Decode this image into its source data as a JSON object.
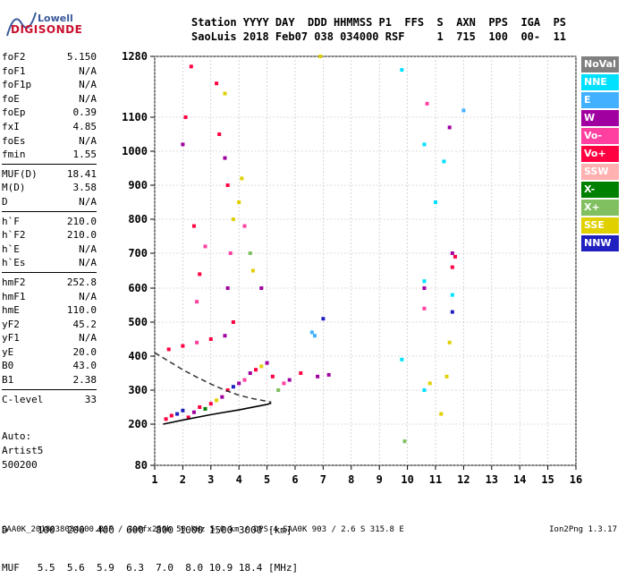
{
  "logo": {
    "line1": "Lowell",
    "line2": "DIGISONDE"
  },
  "header": {
    "line1": "Station YYYY DAY  DDD HHMMSS P1  FFS  S  AXN  PPS  IGA  PS",
    "line2": "SaoLuis 2018 Feb07 038 034000 RSF     1  715  100  00-  11"
  },
  "params": [
    {
      "name": "foF2",
      "value": "5.150"
    },
    {
      "name": "foF1",
      "value": "N/A"
    },
    {
      "name": "foF1p",
      "value": "N/A"
    },
    {
      "name": "foE",
      "value": "N/A"
    },
    {
      "name": "foEp",
      "value": "0.39"
    },
    {
      "name": "fxI",
      "value": "4.85"
    },
    {
      "name": "foEs",
      "value": "N/A"
    },
    {
      "name": "fmin",
      "value": "1.55"
    },
    {
      "sep": true
    },
    {
      "name": "MUF(D)",
      "value": "18.41"
    },
    {
      "name": "M(D)",
      "value": "3.58"
    },
    {
      "name": "D",
      "value": "N/A"
    },
    {
      "sep": true
    },
    {
      "name": "h`F",
      "value": "210.0"
    },
    {
      "name": "h`F2",
      "value": "210.0"
    },
    {
      "name": "h`E",
      "value": "N/A"
    },
    {
      "name": "h`Es",
      "value": "N/A"
    },
    {
      "sep": true
    },
    {
      "name": "hmF2",
      "value": "252.8"
    },
    {
      "name": "hmF1",
      "value": "N/A"
    },
    {
      "name": "hmE",
      "value": "110.0"
    },
    {
      "name": "yF2",
      "value": "45.2"
    },
    {
      "name": "yF1",
      "value": "N/A"
    },
    {
      "name": "yE",
      "value": "20.0"
    },
    {
      "name": "B0",
      "value": "43.0"
    },
    {
      "name": "B1",
      "value": "2.38"
    },
    {
      "sep": true
    },
    {
      "name": "C-level",
      "value": "33"
    }
  ],
  "auto": {
    "label": "Auto:",
    "scaler": "Artist5",
    "version": "500200"
  },
  "muf_table": {
    "line1": "D     100  200  400  600  800 1000 1500 3000 [km]",
    "line2": "MUF   5.5  5.6  5.9  6.3  7.0  8.0 10.9 18.4 [MHz]"
  },
  "footer": "SAA0K_2018038034000.RSF / 300fx256h 50 kHz 5.0 km / DPS-4 SAA0K 903 / 2.6 S 315.8 E",
  "version": "Ion2Png 1.3.17",
  "legend": [
    {
      "label": "NoVal",
      "color": "#808080"
    },
    {
      "label": "NNE",
      "color": "#00e0ff"
    },
    {
      "label": "E",
      "color": "#40b0ff"
    },
    {
      "label": "W",
      "color": "#a000a0"
    },
    {
      "label": "Vo-",
      "color": "#ff40a0"
    },
    {
      "label": "Vo+",
      "color": "#ff0040"
    },
    {
      "label": "SSW",
      "color": "#ffb0b0"
    },
    {
      "label": "X-",
      "color": "#008000"
    },
    {
      "label": "X+",
      "color": "#80c060"
    },
    {
      "label": "SSE",
      "color": "#e0d000"
    },
    {
      "label": "NNW",
      "color": "#2020c0"
    }
  ],
  "chart_data": {
    "type": "scatter",
    "x_ticks": [
      "1",
      "2",
      "3",
      "4",
      "5",
      "6",
      "7",
      "8",
      "9",
      "10",
      "11",
      "12",
      "13",
      "14",
      "15",
      "16"
    ],
    "y_ticks": [
      "80",
      "200",
      "300",
      "400",
      "500",
      "600",
      "700",
      "800",
      "900",
      "1000",
      "1100",
      "1280"
    ],
    "xlim": [
      1,
      16
    ],
    "grid": true,
    "profile_curve": [
      [
        1.3,
        200
      ],
      [
        2,
        212
      ],
      [
        3,
        228
      ],
      [
        4,
        242
      ],
      [
        5,
        258
      ],
      [
        5.15,
        262
      ]
    ],
    "dashed_curve": [
      [
        1.0,
        410
      ],
      [
        1.5,
        385
      ],
      [
        2.0,
        360
      ],
      [
        2.5,
        338
      ],
      [
        3.0,
        318
      ],
      [
        3.5,
        300
      ],
      [
        4.0,
        285
      ],
      [
        4.5,
        275
      ],
      [
        5.15,
        265
      ]
    ],
    "scatter_points": [
      [
        1.4,
        215,
        "Vo+"
      ],
      [
        1.6,
        225,
        "Vo+"
      ],
      [
        1.8,
        230,
        "NNW"
      ],
      [
        2.0,
        240,
        "NNW"
      ],
      [
        2.2,
        220,
        "Vo+"
      ],
      [
        2.4,
        235,
        "W"
      ],
      [
        2.6,
        250,
        "Vo+"
      ],
      [
        2.8,
        245,
        "X-"
      ],
      [
        3.0,
        260,
        "Vo+"
      ],
      [
        3.2,
        270,
        "SSE"
      ],
      [
        3.4,
        280,
        "W"
      ],
      [
        3.6,
        300,
        "Vo+"
      ],
      [
        3.8,
        310,
        "NNW"
      ],
      [
        4.0,
        320,
        "W"
      ],
      [
        4.2,
        330,
        "Vo-"
      ],
      [
        4.4,
        350,
        "W"
      ],
      [
        4.6,
        360,
        "Vo+"
      ],
      [
        4.8,
        370,
        "SSE"
      ],
      [
        5.0,
        380,
        "W"
      ],
      [
        5.2,
        340,
        "Vo+"
      ],
      [
        5.4,
        300,
        "X+"
      ],
      [
        5.6,
        320,
        "Vo-"
      ],
      [
        5.8,
        330,
        "W"
      ],
      [
        6.2,
        350,
        "Vo+"
      ],
      [
        6.8,
        340,
        "W"
      ],
      [
        7.0,
        510,
        "NNW"
      ],
      [
        1.5,
        420,
        "Vo+"
      ],
      [
        2.0,
        430,
        "Vo+"
      ],
      [
        2.5,
        440,
        "Vo-"
      ],
      [
        3.0,
        450,
        "Vo+"
      ],
      [
        3.5,
        460,
        "W"
      ],
      [
        3.8,
        500,
        "Vo+"
      ],
      [
        3.6,
        600,
        "W"
      ],
      [
        3.7,
        700,
        "Vo-"
      ],
      [
        3.8,
        800,
        "SSE"
      ],
      [
        3.6,
        900,
        "Vo+"
      ],
      [
        3.5,
        980,
        "W"
      ],
      [
        4.0,
        850,
        "SSE"
      ],
      [
        4.1,
        920,
        "SSE"
      ],
      [
        4.2,
        780,
        "Vo-"
      ],
      [
        4.5,
        650,
        "SSE"
      ],
      [
        4.4,
        700,
        "X+"
      ],
      [
        4.8,
        600,
        "W"
      ],
      [
        2.5,
        560,
        "Vo-"
      ],
      [
        2.6,
        640,
        "Vo+"
      ],
      [
        2.8,
        720,
        "Vo-"
      ],
      [
        2.4,
        780,
        "Vo+"
      ],
      [
        3.3,
        1050,
        "Vo+"
      ],
      [
        3.2,
        1200,
        "Vo+"
      ],
      [
        2.3,
        1250,
        "Vo+"
      ],
      [
        2.1,
        1100,
        "Vo+"
      ],
      [
        3.5,
        1170,
        "SSE"
      ],
      [
        2.0,
        1020,
        "W"
      ],
      [
        9.8,
        1240,
        "NNE"
      ],
      [
        10.6,
        1020,
        "NNE"
      ],
      [
        10.7,
        1140,
        "Vo-"
      ],
      [
        11.3,
        970,
        "NNE"
      ],
      [
        11.0,
        850,
        "NNE"
      ],
      [
        11.5,
        1070,
        "W"
      ],
      [
        11.6,
        700,
        "W"
      ],
      [
        11.7,
        690,
        "Vo+"
      ],
      [
        11.6,
        660,
        "Vo+"
      ],
      [
        11.6,
        580,
        "NNE"
      ],
      [
        11.6,
        530,
        "NNW"
      ],
      [
        11.5,
        440,
        "SSE"
      ],
      [
        11.4,
        340,
        "SSE"
      ],
      [
        10.6,
        620,
        "NNE"
      ],
      [
        10.6,
        600,
        "W"
      ],
      [
        10.6,
        540,
        "Vo-"
      ],
      [
        10.8,
        320,
        "SSE"
      ],
      [
        10.6,
        300,
        "NNE"
      ],
      [
        9.8,
        390,
        "NNE"
      ],
      [
        9.9,
        150,
        "X+"
      ],
      [
        11.2,
        230,
        "SSE"
      ],
      [
        12.0,
        1120,
        "E"
      ],
      [
        6.6,
        470,
        "E"
      ],
      [
        6.7,
        460,
        "E"
      ],
      [
        7.2,
        345,
        "W"
      ],
      [
        6.9,
        1280,
        "SSE"
      ]
    ]
  }
}
